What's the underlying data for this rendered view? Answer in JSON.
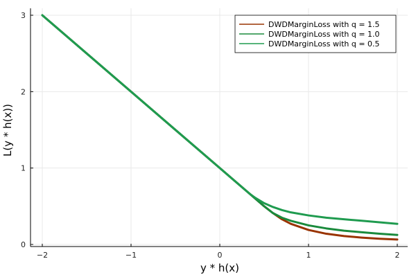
{
  "chart_data": {
    "type": "line",
    "xlabel": "y * h(x)",
    "ylabel": "L(y * h(x))",
    "xlim": [
      -2,
      2
    ],
    "ylim": [
      0,
      3
    ],
    "x_ticks": [
      -2,
      -1,
      0,
      1,
      2
    ],
    "x_tick_labels": [
      "−2",
      "−1",
      "0",
      "1",
      "2"
    ],
    "y_ticks": [
      0,
      1,
      2,
      3
    ],
    "y_tick_labels": [
      "0",
      "1",
      "2",
      "3"
    ],
    "grid": true,
    "legend_position": "top-right",
    "series": [
      {
        "name": "DWDMarginLoss with q = 1.5",
        "color": "#993300",
        "x": [
          -2,
          0,
          0.4,
          0.5,
          0.6,
          0.7,
          0.8,
          1.0,
          1.2,
          1.4,
          1.6,
          1.8,
          2.0
        ],
        "y": [
          3.0,
          1.0,
          0.6,
          0.5,
          0.41,
          0.33,
          0.27,
          0.19,
          0.14,
          0.11,
          0.09,
          0.075,
          0.065
        ]
      },
      {
        "name": "DWDMarginLoss with q = 1.0",
        "color": "#1a8a3c",
        "x": [
          -2,
          0,
          0.5,
          0.6,
          0.7,
          0.8,
          1.0,
          1.2,
          1.4,
          1.6,
          1.8,
          2.0
        ],
        "y": [
          3.0,
          1.0,
          0.5,
          0.41,
          0.35,
          0.31,
          0.25,
          0.21,
          0.18,
          0.16,
          0.14,
          0.125
        ]
      },
      {
        "name": "DWDMarginLoss with q = 0.5",
        "color": "#1f9b4f",
        "x": [
          -2,
          0,
          0.333,
          0.4,
          0.5,
          0.6,
          0.7,
          0.8,
          1.0,
          1.2,
          1.4,
          1.6,
          1.8,
          2.0
        ],
        "y": [
          3.0,
          1.0,
          0.667,
          0.61,
          0.54,
          0.49,
          0.45,
          0.42,
          0.38,
          0.35,
          0.33,
          0.31,
          0.29,
          0.27
        ]
      }
    ]
  }
}
